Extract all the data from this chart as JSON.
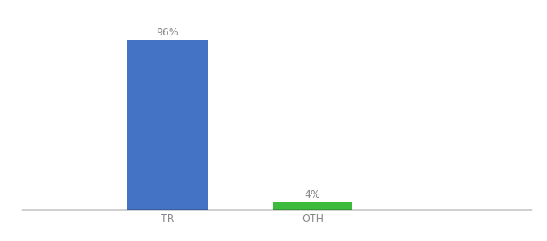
{
  "categories": [
    "TR",
    "OTH"
  ],
  "values": [
    96,
    4
  ],
  "bar_colors": [
    "#4472c4",
    "#3dbb3d"
  ],
  "value_labels": [
    "96%",
    "4%"
  ],
  "ylim": [
    0,
    108
  ],
  "background_color": "#ffffff",
  "bar_width": 0.55,
  "label_fontsize": 9,
  "tick_fontsize": 9,
  "label_color": "#888888",
  "x_positions": [
    1,
    2
  ],
  "xlim": [
    0.0,
    3.5
  ]
}
